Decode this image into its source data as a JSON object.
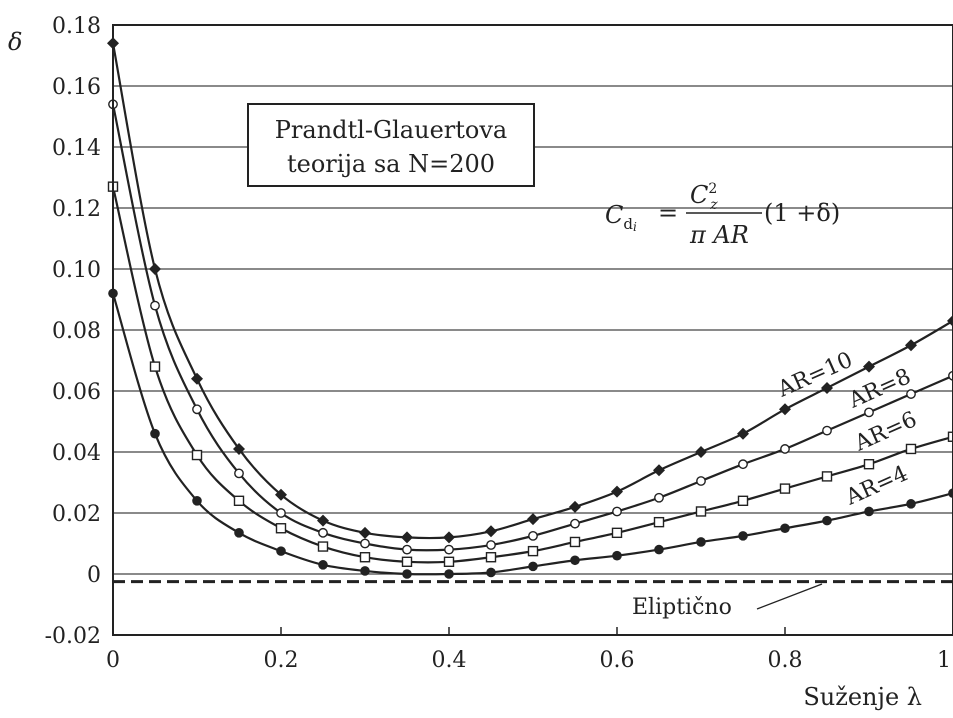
{
  "chart_data": {
    "type": "line",
    "xlabel": "Suženje λ",
    "ylabel": "δ",
    "xlim": [
      0,
      1
    ],
    "ylim": [
      -0.02,
      0.18
    ],
    "x_ticks": [
      "0",
      "0.2",
      "0.4",
      "0.6",
      "0.8",
      "1"
    ],
    "y_ticks": [
      "-0.02",
      "0",
      "0.02",
      "0.04",
      "0.06",
      "0.08",
      "0.10",
      "0.12",
      "0.14",
      "0.16",
      "0.18"
    ],
    "grid": "horizontal",
    "box_text": [
      "Prandtl-Glauertova",
      "teorija sa N=200"
    ],
    "formula": "C_di = (C_z^2 / (π AR)) (1 + δ)",
    "x": [
      0,
      0.05,
      0.1,
      0.15,
      0.2,
      0.25,
      0.3,
      0.35,
      0.4,
      0.45,
      0.5,
      0.55,
      0.6,
      0.65,
      0.7,
      0.75,
      0.8,
      0.85,
      0.9,
      0.95,
      1.0
    ],
    "series": [
      {
        "name": "AR=10",
        "marker": "diamond",
        "values": [
          0.174,
          0.1,
          0.064,
          0.041,
          0.026,
          0.0175,
          0.0135,
          0.012,
          0.012,
          0.014,
          0.018,
          0.022,
          0.027,
          0.034,
          0.04,
          0.046,
          0.054,
          0.061,
          0.068,
          0.075,
          0.083
        ]
      },
      {
        "name": "AR=8",
        "marker": "circle-open",
        "values": [
          0.154,
          0.088,
          0.054,
          0.033,
          0.02,
          0.0135,
          0.01,
          0.008,
          0.008,
          0.0095,
          0.0125,
          0.0165,
          0.0205,
          0.025,
          0.0305,
          0.036,
          0.041,
          0.047,
          0.053,
          0.059,
          0.065
        ]
      },
      {
        "name": "AR=6",
        "marker": "square-open",
        "values": [
          0.127,
          0.068,
          0.039,
          0.024,
          0.015,
          0.009,
          0.0055,
          0.004,
          0.004,
          0.0055,
          0.0075,
          0.0105,
          0.0135,
          0.017,
          0.0205,
          0.024,
          0.028,
          0.032,
          0.036,
          0.041,
          0.045
        ]
      },
      {
        "name": "AR=4",
        "marker": "circle-filled",
        "values": [
          0.092,
          0.046,
          0.024,
          0.0135,
          0.0075,
          0.003,
          0.001,
          0.0,
          0.0,
          0.0005,
          0.0025,
          0.0045,
          0.006,
          0.008,
          0.0105,
          0.0125,
          0.015,
          0.0175,
          0.0205,
          0.023,
          0.0265
        ]
      }
    ],
    "reference_line": {
      "name": "Eliptično",
      "value": -0.0025,
      "style": "dashed"
    }
  }
}
